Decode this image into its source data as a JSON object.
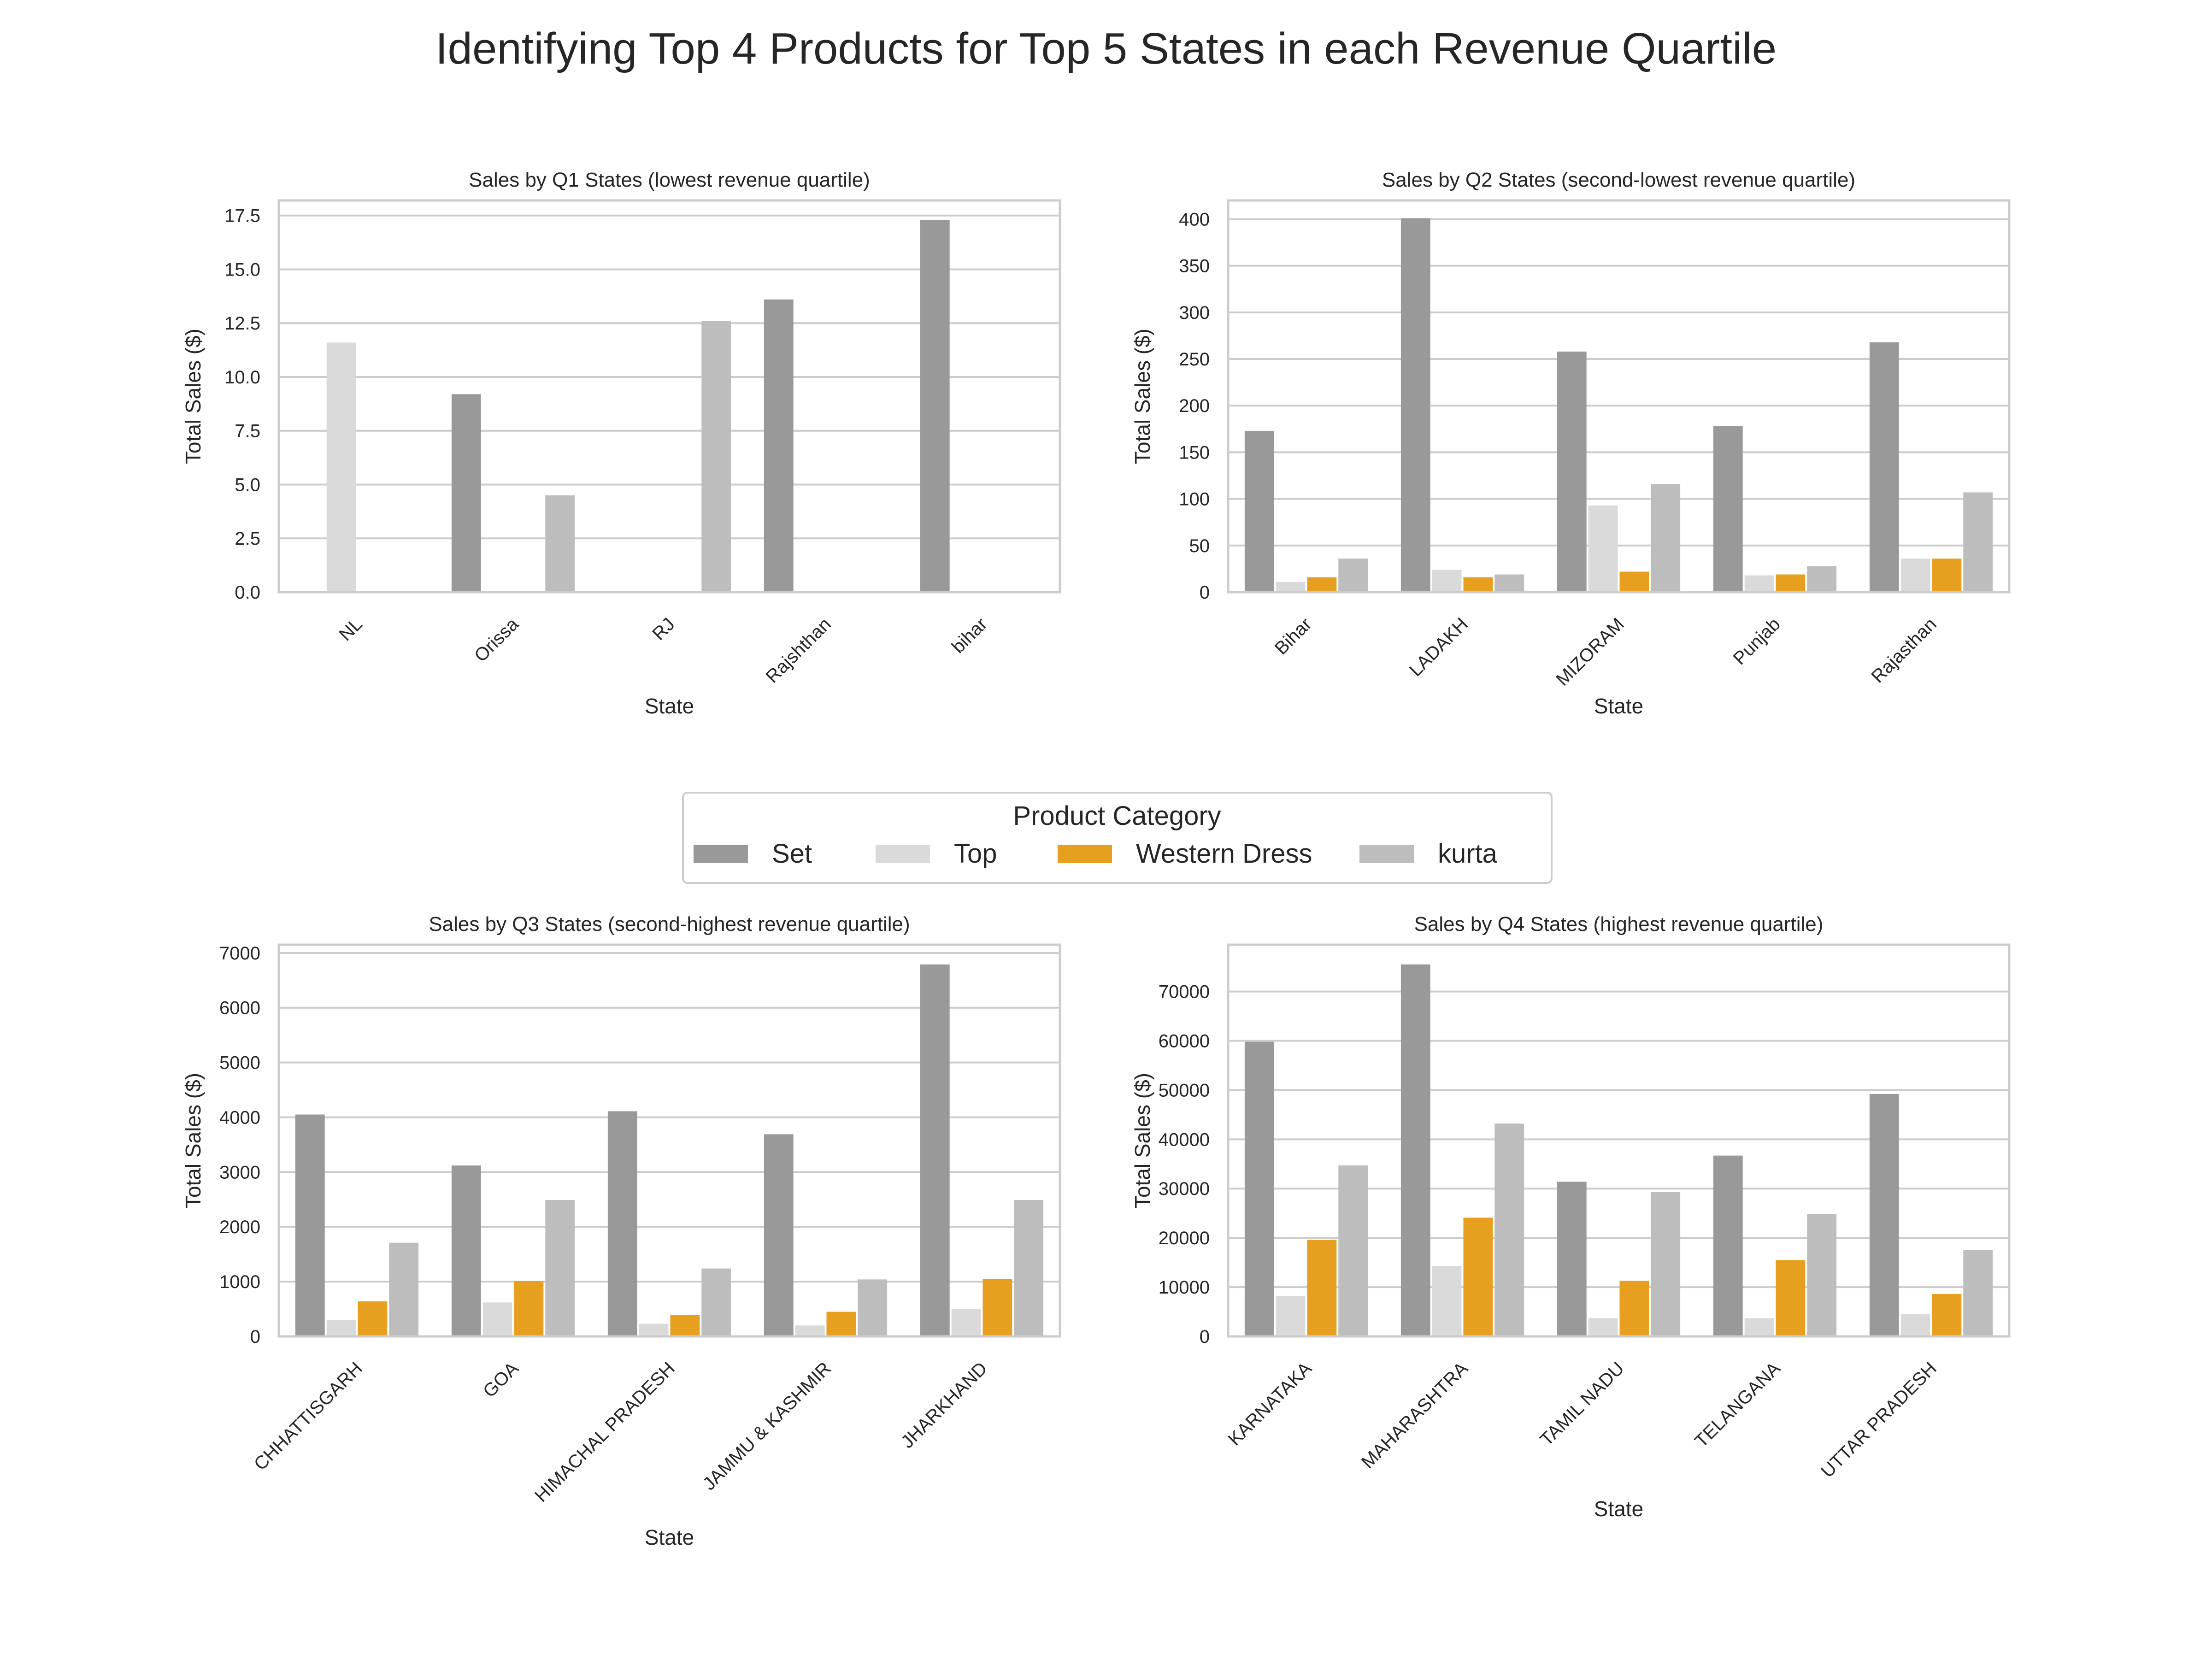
{
  "title": "Identifying Top 4 Products for Top 5 States in each Revenue Quartile",
  "legend": {
    "title": "Product Category",
    "placement": "center",
    "items": [
      {
        "label": "Set",
        "color": "#999999"
      },
      {
        "label": "Top",
        "color": "#dadada"
      },
      {
        "label": "Western Dress",
        "color": "#e69f1e"
      },
      {
        "label": "kurta",
        "color": "#bdbdbd"
      }
    ]
  },
  "chart_data": [
    {
      "type": "bar",
      "title": "Sales by Q1 States (lowest revenue quartile)",
      "xlabel": "State",
      "ylabel": "Total Sales ($)",
      "ylim": [
        0,
        18.2
      ],
      "yticks": [
        0,
        2.5,
        5,
        7.5,
        10,
        12.5,
        15,
        17.5
      ],
      "ytick_labels": [
        "0.0",
        "2.5",
        "5.0",
        "7.5",
        "10.0",
        "12.5",
        "15.0",
        "17.5"
      ],
      "categories": [
        "NL",
        "Orissa",
        "RJ",
        "Rajshthan",
        "bihar"
      ],
      "series": [
        {
          "name": "Set",
          "values": [
            0,
            9.2,
            0,
            13.6,
            17.3
          ]
        },
        {
          "name": "Top",
          "values": [
            11.6,
            0,
            0,
            0,
            0
          ]
        },
        {
          "name": "Western Dress",
          "values": [
            0,
            0,
            0,
            0,
            0
          ]
        },
        {
          "name": "kurta",
          "values": [
            0,
            4.5,
            12.6,
            0,
            0
          ]
        }
      ],
      "grid": true
    },
    {
      "type": "bar",
      "title": "Sales by Q2 States (second-lowest revenue quartile)",
      "xlabel": "State",
      "ylabel": "Total Sales ($)",
      "ylim": [
        0,
        420
      ],
      "yticks": [
        0,
        50,
        100,
        150,
        200,
        250,
        300,
        350,
        400
      ],
      "ytick_labels": [
        "0",
        "50",
        "100",
        "150",
        "200",
        "250",
        "300",
        "350",
        "400"
      ],
      "categories": [
        "Bihar",
        "LADAKH",
        "MIZORAM",
        "Punjab",
        "Rajasthan"
      ],
      "series": [
        {
          "name": "Set",
          "values": [
            173,
            401,
            258,
            178,
            268
          ]
        },
        {
          "name": "Top",
          "values": [
            11,
            24,
            93,
            18,
            36
          ]
        },
        {
          "name": "Western Dress",
          "values": [
            16,
            16,
            22,
            19,
            36
          ]
        },
        {
          "name": "kurta",
          "values": [
            36,
            19,
            116,
            28,
            107
          ]
        }
      ],
      "grid": true
    },
    {
      "type": "bar",
      "title": "Sales by Q3 States (second-highest revenue quartile)",
      "xlabel": "State",
      "ylabel": "Total Sales ($)",
      "ylim": [
        0,
        7150
      ],
      "yticks": [
        0,
        1000,
        2000,
        3000,
        4000,
        5000,
        6000,
        7000
      ],
      "ytick_labels": [
        "0",
        "1000",
        "2000",
        "3000",
        "4000",
        "5000",
        "6000",
        "7000"
      ],
      "categories": [
        "CHHATTISGARH",
        "GOA",
        "HIMACHAL PRADESH",
        "JAMMU & KASHMIR",
        "JHARKHAND"
      ],
      "series": [
        {
          "name": "Set",
          "values": [
            4050,
            3120,
            4110,
            3690,
            6790
          ]
        },
        {
          "name": "Top",
          "values": [
            300,
            620,
            230,
            200,
            500
          ]
        },
        {
          "name": "Western Dress",
          "values": [
            640,
            1010,
            390,
            450,
            1050
          ]
        },
        {
          "name": "kurta",
          "values": [
            1710,
            2490,
            1240,
            1040,
            2490
          ]
        }
      ],
      "grid": true
    },
    {
      "type": "bar",
      "title": "Sales by Q4 States (highest revenue quartile)",
      "xlabel": "State",
      "ylabel": "Total Sales ($)",
      "ylim": [
        0,
        79500
      ],
      "yticks": [
        0,
        10000,
        20000,
        30000,
        40000,
        50000,
        60000,
        70000
      ],
      "ytick_labels": [
        "0",
        "10000",
        "20000",
        "30000",
        "40000",
        "50000",
        "60000",
        "70000"
      ],
      "categories": [
        "KARNATAKA",
        "MAHARASHTRA",
        "TAMIL NADU",
        "TELANGANA",
        "UTTAR PRADESH"
      ],
      "series": [
        {
          "name": "Set",
          "values": [
            59800,
            75500,
            31400,
            36700,
            49200
          ]
        },
        {
          "name": "Top",
          "values": [
            8200,
            14300,
            3700,
            3700,
            4500
          ]
        },
        {
          "name": "Western Dress",
          "values": [
            19600,
            24100,
            11300,
            15500,
            8600
          ]
        },
        {
          "name": "kurta",
          "values": [
            34700,
            43200,
            29300,
            24800,
            17500
          ]
        }
      ],
      "grid": true
    }
  ]
}
